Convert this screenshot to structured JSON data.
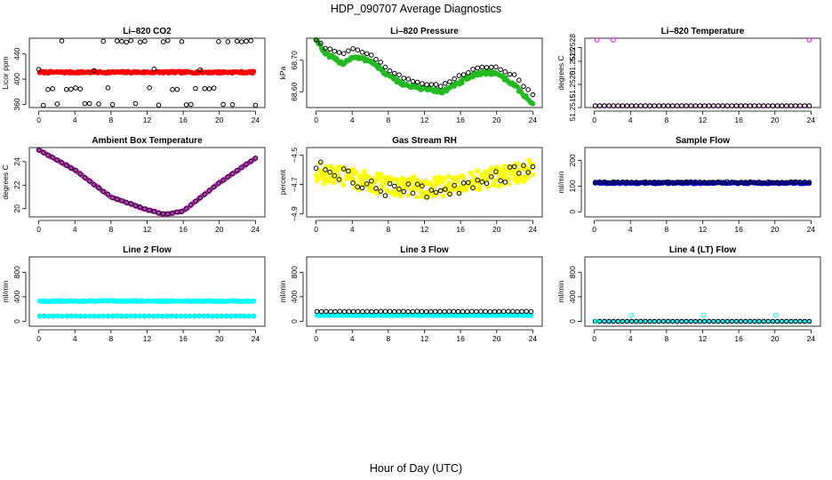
{
  "title": "HDP_090707  Average Diagnostics",
  "xlabel": "Hour of Day (UTC)",
  "chart_data": [
    {
      "type": "scatter",
      "title": "Li–820 CO2",
      "ylabel": "Licor ppm",
      "xlim": [
        0,
        24
      ],
      "ylim": [
        355,
        465
      ],
      "xticks": [
        "0",
        "4",
        "8",
        "12",
        "16",
        "20",
        "24"
      ],
      "yticks": [
        360,
        400,
        440
      ],
      "ytick_labels": [
        "360",
        "400",
        "440"
      ],
      "series": [
        {
          "name": "sample",
          "color": "#ff0000",
          "pattern": "const",
          "value": 411,
          "amp": 1.5,
          "n": 190,
          "filled": true
        },
        {
          "name": "avg",
          "color": "#000000",
          "pattern": "levels",
          "levels": [
            460,
            415,
            385,
            360
          ],
          "n": 48,
          "filled": false
        }
      ]
    },
    {
      "type": "scatter",
      "title": "Li–820 Pressure",
      "ylabel": "kPa",
      "xlim": [
        0,
        24
      ],
      "ylim": [
        68.55,
        68.77
      ],
      "xticks": [
        "0",
        "4",
        "8",
        "12",
        "16",
        "20",
        "24"
      ],
      "yticks": [
        68.6,
        68.7
      ],
      "ytick_labels": [
        "68.60",
        "68.70"
      ],
      "series": [
        {
          "name": "sample",
          "color": "#22bb22",
          "pattern": "keys",
          "keys": [
            [
              0,
              68.77
            ],
            [
              1,
              68.72
            ],
            [
              3,
              68.69
            ],
            [
              4,
              68.71
            ],
            [
              6,
              68.7
            ],
            [
              8,
              68.65
            ],
            [
              10,
              68.62
            ],
            [
              12,
              68.61
            ],
            [
              14,
              68.6
            ],
            [
              16,
              68.63
            ],
            [
              18,
              68.66
            ],
            [
              20,
              68.66
            ],
            [
              22,
              68.62
            ],
            [
              24,
              68.56
            ]
          ],
          "noise": 0.006,
          "n": 200,
          "filled": true
        },
        {
          "name": "avg",
          "color": "#000000",
          "pattern": "keys",
          "keys": [
            [
              0,
              68.77
            ],
            [
              1,
              68.74
            ],
            [
              3,
              68.72
            ],
            [
              4,
              68.74
            ],
            [
              6,
              68.72
            ],
            [
              8,
              68.67
            ],
            [
              10,
              68.64
            ],
            [
              12,
              68.62
            ],
            [
              14,
              68.62
            ],
            [
              16,
              68.65
            ],
            [
              18,
              68.68
            ],
            [
              20,
              68.68
            ],
            [
              22,
              68.65
            ],
            [
              24,
              68.59
            ]
          ],
          "noise": 0.004,
          "n": 48,
          "filled": false
        }
      ]
    },
    {
      "type": "scatter",
      "title": "Li–820 Temperature",
      "ylabel": "degrees C",
      "xlim": [
        0,
        24
      ],
      "ylim": [
        51.2515,
        51.253
      ],
      "xticks": [
        "0",
        "4",
        "8",
        "12",
        "16",
        "20",
        "24"
      ],
      "yticks": [
        51.2515,
        51.252,
        51.2525,
        51.2528
      ],
      "ytick_labels": [
        "51.2515",
        "51.2520",
        "51.2525",
        "51.2528"
      ],
      "series": [
        {
          "name": "sample",
          "color": "#ff00ff",
          "pattern": "const",
          "value": 51.2515,
          "amp": 0,
          "n": 48,
          "filled": false
        },
        {
          "name": "avg",
          "color": "#000000",
          "pattern": "const",
          "value": 51.2515,
          "amp": 0,
          "n": 48,
          "filled": false
        },
        {
          "name": "outliers",
          "color": "#ff00ff",
          "pattern": "points",
          "points": [
            [
              0.3,
              51.253
            ],
            [
              2.1,
              51.253
            ],
            [
              23.8,
              51.253
            ]
          ],
          "filled": false
        }
      ]
    },
    {
      "type": "scatter",
      "title": "Ambient Box Temperature",
      "ylabel": "degrees C",
      "xlim": [
        0,
        24
      ],
      "ylim": [
        19.3,
        25.2
      ],
      "xticks": [
        "0",
        "4",
        "8",
        "12",
        "16",
        "20",
        "24"
      ],
      "yticks": [
        20,
        22,
        24
      ],
      "ytick_labels": [
        "20",
        "22",
        "24"
      ],
      "series": [
        {
          "name": "sample",
          "color": "#cc33cc",
          "pattern": "keys",
          "keys": [
            [
              0,
              25
            ],
            [
              4,
              23.3
            ],
            [
              8,
              21
            ],
            [
              12,
              19.9
            ],
            [
              14,
              19.5
            ],
            [
              16,
              19.8
            ],
            [
              20,
              22.2
            ],
            [
              24,
              24.3
            ]
          ],
          "noise": 0.05,
          "n": 190,
          "filled": true
        },
        {
          "name": "avg",
          "color": "#000000",
          "pattern": "keys",
          "keys": [
            [
              0,
              25
            ],
            [
              4,
              23.3
            ],
            [
              8,
              21
            ],
            [
              12,
              19.9
            ],
            [
              14,
              19.5
            ],
            [
              16,
              19.8
            ],
            [
              20,
              22.2
            ],
            [
              24,
              24.3
            ]
          ],
          "noise": 0.03,
          "n": 48,
          "filled": false
        }
      ]
    },
    {
      "type": "scatter",
      "title": "Gas Stream RH",
      "ylabel": "percent",
      "xlim": [
        0,
        24
      ],
      "ylim": [
        -4.92,
        -4.45
      ],
      "xticks": [
        "0",
        "4",
        "8",
        "12",
        "16",
        "20",
        "24"
      ],
      "yticks": [
        -4.9,
        -4.7,
        -4.5
      ],
      "ytick_labels": [
        "−4.9",
        "−4.7",
        "−4.5"
      ],
      "series": [
        {
          "name": "sample",
          "color": "#ffff00",
          "pattern": "keys",
          "keys": [
            [
              0,
              -4.62
            ],
            [
              4,
              -4.66
            ],
            [
              8,
              -4.71
            ],
            [
              12,
              -4.72
            ],
            [
              16,
              -4.7
            ],
            [
              20,
              -4.65
            ],
            [
              24,
              -4.6
            ]
          ],
          "noise": 0.07,
          "n": 280,
          "filled": true
        },
        {
          "name": "avg",
          "color": "#000000",
          "pattern": "keys",
          "keys": [
            [
              0,
              -4.58
            ],
            [
              4,
              -4.66
            ],
            [
              8,
              -4.74
            ],
            [
              12,
              -4.74
            ],
            [
              16,
              -4.72
            ],
            [
              20,
              -4.66
            ],
            [
              24,
              -4.58
            ]
          ],
          "noise": 0.05,
          "n": 48,
          "filled": false
        }
      ]
    },
    {
      "type": "scatter",
      "title": "Sample Flow",
      "ylabel": "ml/min",
      "xlim": [
        0,
        24
      ],
      "ylim": [
        -20,
        250
      ],
      "xticks": [
        "0",
        "4",
        "8",
        "12",
        "16",
        "20",
        "24"
      ],
      "yticks": [
        0,
        100,
        200
      ],
      "ytick_labels": [
        "0",
        "100",
        "200"
      ],
      "series": [
        {
          "name": "sample",
          "color": "#0000cc",
          "pattern": "const",
          "value": 112,
          "amp": 3,
          "n": 190,
          "filled": true
        },
        {
          "name": "avg",
          "color": "#000000",
          "pattern": "const",
          "value": 115,
          "amp": 2,
          "n": 48,
          "filled": false
        }
      ]
    },
    {
      "type": "scatter",
      "title": "Line 2 Flow",
      "ylabel": "ml/min",
      "xlim": [
        0,
        24
      ],
      "ylim": [
        -80,
        1050
      ],
      "xticks": [
        "0",
        "4",
        "8",
        "12",
        "16",
        "20",
        "24"
      ],
      "yticks": [
        0,
        400,
        800
      ],
      "ytick_labels": [
        "0",
        "400",
        "800"
      ],
      "series": [
        {
          "name": "sample",
          "color": "#00ffff",
          "pattern": "const",
          "value": 330,
          "amp": 8,
          "n": 190,
          "filled": true
        },
        {
          "name": "avg",
          "color": "#000000",
          "pattern": "const",
          "value": 85,
          "amp": 2,
          "n": 48,
          "filled": false
        },
        {
          "name": "sample-low",
          "color": "#00ffff",
          "pattern": "const",
          "value": 85,
          "amp": 2,
          "n": 48,
          "filled": true
        }
      ]
    },
    {
      "type": "scatter",
      "title": "Line 3 Flow",
      "ylabel": "ml/min",
      "xlim": [
        0,
        24
      ],
      "ylim": [
        -80,
        1050
      ],
      "xticks": [
        "0",
        "4",
        "8",
        "12",
        "16",
        "20",
        "24"
      ],
      "yticks": [
        0,
        400,
        800
      ],
      "ytick_labels": [
        "0",
        "400",
        "800"
      ],
      "series": [
        {
          "name": "sample",
          "color": "#00ffff",
          "pattern": "const",
          "value": 100,
          "amp": 6,
          "n": 190,
          "filled": true
        },
        {
          "name": "avg",
          "color": "#000000",
          "pattern": "const",
          "value": 160,
          "amp": 3,
          "n": 48,
          "filled": false
        }
      ]
    },
    {
      "type": "scatter",
      "title": "Line 4 (LT) Flow",
      "ylabel": "ml/min",
      "xlim": [
        0,
        24
      ],
      "ylim": [
        -80,
        1050
      ],
      "xticks": [
        "0",
        "4",
        "8",
        "12",
        "16",
        "20",
        "24"
      ],
      "yticks": [
        0,
        400,
        800
      ],
      "ytick_labels": [
        "0",
        "400",
        "800"
      ],
      "series": [
        {
          "name": "sample",
          "color": "#00ffff",
          "pattern": "const",
          "value": 0,
          "amp": 0,
          "n": 48,
          "filled": true
        },
        {
          "name": "avg",
          "color": "#000000",
          "pattern": "const",
          "value": 0,
          "amp": 0,
          "n": 48,
          "filled": false
        },
        {
          "name": "spikes",
          "color": "#00ffff",
          "pattern": "points",
          "points": [
            [
              0.2,
              0
            ],
            [
              4.1,
              100
            ],
            [
              12.1,
              100
            ],
            [
              20.1,
              100
            ]
          ],
          "filled": false
        }
      ]
    }
  ]
}
